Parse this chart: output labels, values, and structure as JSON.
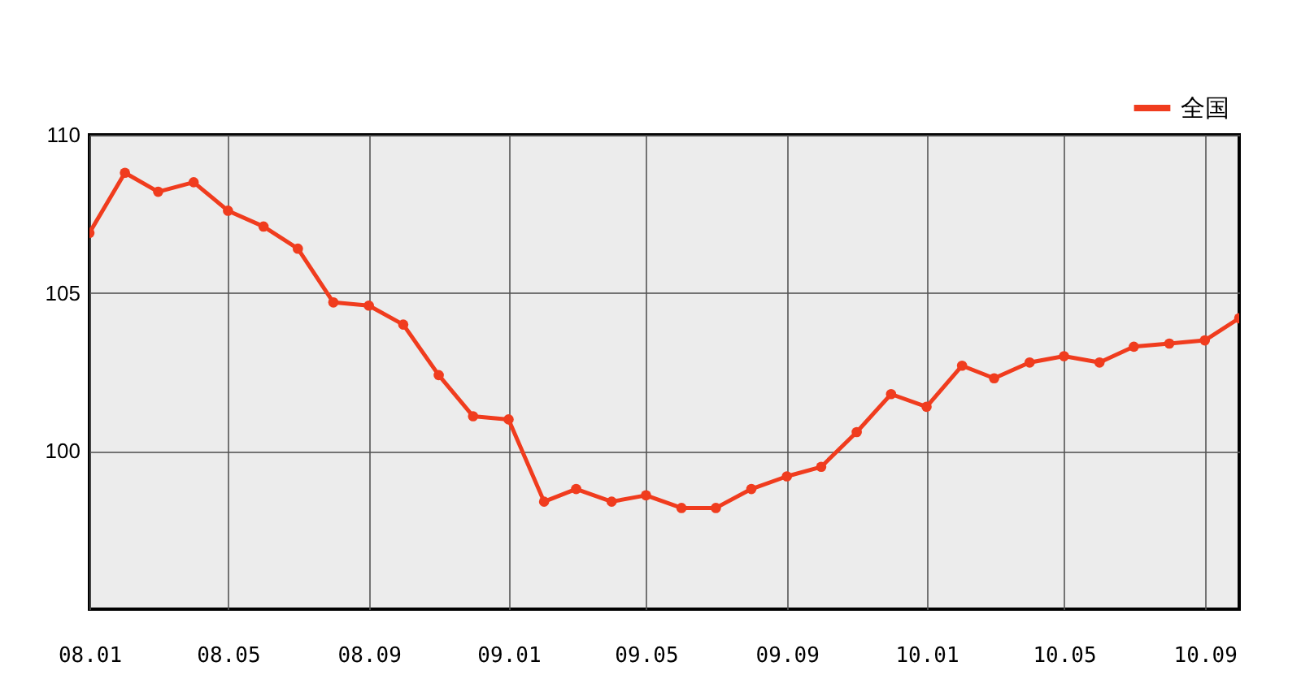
{
  "chart_data": {
    "type": "line",
    "x": [
      "2008-01",
      "2008-02",
      "2008-03",
      "2008-04",
      "2008-05",
      "2008-06",
      "2008-07",
      "2008-08",
      "2008-09",
      "2008-10",
      "2008-11",
      "2008-12",
      "2009-01",
      "2009-02",
      "2009-03",
      "2009-04",
      "2009-05",
      "2009-06",
      "2009-07",
      "2009-08",
      "2009-09",
      "2009-10",
      "2009-11",
      "2009-12",
      "2010-01",
      "2010-02",
      "2010-03",
      "2010-04",
      "2010-05",
      "2010-06",
      "2010-07",
      "2010-08",
      "2010-09",
      "2010-10"
    ],
    "series": [
      {
        "name": "全国",
        "color": "#f03c1e",
        "values": [
          106.9,
          108.8,
          108.2,
          108.5,
          107.6,
          107.1,
          106.4,
          104.7,
          104.6,
          104.0,
          102.4,
          101.1,
          101.0,
          98.4,
          98.8,
          98.4,
          98.6,
          98.2,
          98.2,
          98.8,
          99.2,
          99.5,
          100.6,
          101.8,
          101.4,
          102.7,
          102.3,
          102.8,
          103.0,
          102.8,
          103.3,
          103.4,
          103.5,
          104.2
        ]
      }
    ],
    "xlim": [
      "2008-01",
      "2010-10"
    ],
    "xticks": [
      {
        "value": "2008-01",
        "label": "08.01"
      },
      {
        "value": "2008-05",
        "label": "08.05"
      },
      {
        "value": "2008-09",
        "label": "08.09"
      },
      {
        "value": "2009-01",
        "label": "09.01"
      },
      {
        "value": "2009-05",
        "label": "09.05"
      },
      {
        "value": "2009-09",
        "label": "09.09"
      },
      {
        "value": "2010-01",
        "label": "10.01"
      },
      {
        "value": "2010-05",
        "label": "10.05"
      },
      {
        "value": "2010-09",
        "label": "10.09"
      }
    ],
    "ylim": [
      95,
      110
    ],
    "yticks": [
      100,
      105,
      110
    ],
    "grid": true,
    "legend": "top right",
    "marker": "circle",
    "line_style": "solid"
  }
}
